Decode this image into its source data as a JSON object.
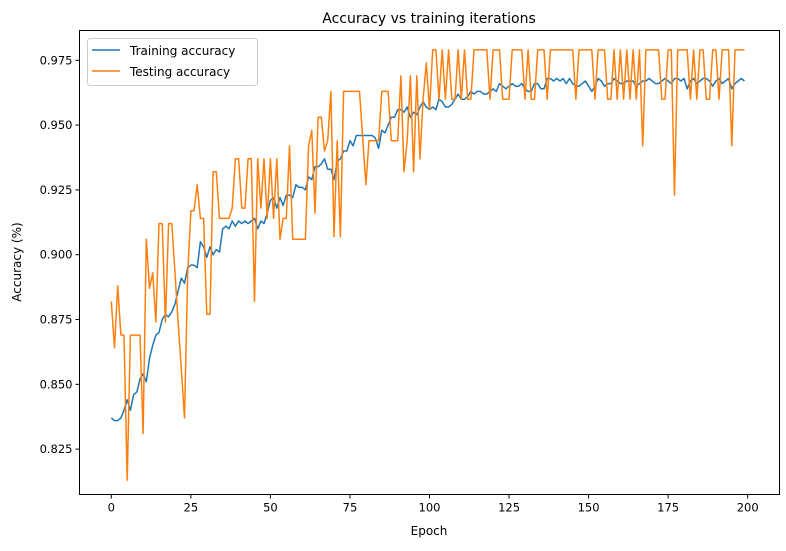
{
  "chart_data": {
    "type": "line",
    "title": "Accuracy vs training iterations",
    "xlabel": "Epoch",
    "ylabel": "Accuracy (%)",
    "xlim": [
      -10,
      210
    ],
    "ylim": [
      0.8075,
      0.9865
    ],
    "xticks": [
      0,
      25,
      50,
      75,
      100,
      125,
      150,
      175,
      200
    ],
    "yticks": [
      0.825,
      0.85,
      0.875,
      0.9,
      0.925,
      0.95,
      0.975
    ],
    "ytick_labels": [
      "0.825",
      "0.850",
      "0.875",
      "0.900",
      "0.925",
      "0.950",
      "0.975"
    ],
    "grid": false,
    "legend_placement": "top-left",
    "series": [
      {
        "name": "Training accuracy",
        "color": "#1f77b4",
        "values": [
          0.837,
          0.836,
          0.836,
          0.837,
          0.84,
          0.844,
          0.84,
          0.846,
          0.847,
          0.852,
          0.854,
          0.851,
          0.86,
          0.865,
          0.869,
          0.87,
          0.875,
          0.877,
          0.876,
          0.878,
          0.881,
          0.886,
          0.891,
          0.889,
          0.895,
          0.896,
          0.896,
          0.895,
          0.905,
          0.903,
          0.899,
          0.903,
          0.9,
          0.902,
          0.901,
          0.91,
          0.911,
          0.91,
          0.913,
          0.911,
          0.913,
          0.912,
          0.913,
          0.912,
          0.913,
          0.914,
          0.91,
          0.913,
          0.912,
          0.916,
          0.921,
          0.922,
          0.918,
          0.922,
          0.919,
          0.923,
          0.923,
          0.922,
          0.927,
          0.926,
          0.926,
          0.925,
          0.93,
          0.929,
          0.934,
          0.934,
          0.935,
          0.937,
          0.933,
          0.933,
          0.929,
          0.936,
          0.937,
          0.94,
          0.94,
          0.944,
          0.942,
          0.946,
          0.946,
          0.946,
          0.946,
          0.946,
          0.946,
          0.945,
          0.941,
          0.948,
          0.947,
          0.95,
          0.953,
          0.953,
          0.956,
          0.956,
          0.955,
          0.957,
          0.953,
          0.955,
          0.954,
          0.957,
          0.959,
          0.957,
          0.956,
          0.957,
          0.956,
          0.96,
          0.959,
          0.957,
          0.957,
          0.958,
          0.96,
          0.962,
          0.96,
          0.96,
          0.961,
          0.963,
          0.962,
          0.963,
          0.963,
          0.962,
          0.962,
          0.963,
          0.964,
          0.963,
          0.966,
          0.965,
          0.964,
          0.965,
          0.966,
          0.965,
          0.965,
          0.966,
          0.964,
          0.963,
          0.963,
          0.966,
          0.966,
          0.964,
          0.964,
          0.968,
          0.968,
          0.967,
          0.968,
          0.967,
          0.968,
          0.966,
          0.968,
          0.966,
          0.965,
          0.965,
          0.966,
          0.967,
          0.965,
          0.963,
          0.965,
          0.968,
          0.967,
          0.965,
          0.966,
          0.966,
          0.968,
          0.967,
          0.966,
          0.966,
          0.967,
          0.967,
          0.967,
          0.965,
          0.966,
          0.967,
          0.967,
          0.968,
          0.967,
          0.966,
          0.966,
          0.967,
          0.968,
          0.967,
          0.966,
          0.968,
          0.968,
          0.967,
          0.968,
          0.964,
          0.967,
          0.968,
          0.966,
          0.967,
          0.968,
          0.968,
          0.967,
          0.965,
          0.967,
          0.968,
          0.966,
          0.967,
          0.968,
          0.964,
          0.966,
          0.967,
          0.968,
          0.967
        ]
      },
      {
        "name": "Testing accuracy",
        "color": "#ff7f0e",
        "values": [
          0.882,
          0.864,
          0.888,
          0.869,
          0.869,
          0.813,
          0.869,
          0.869,
          0.869,
          0.869,
          0.831,
          0.906,
          0.887,
          0.893,
          0.874,
          0.912,
          0.912,
          0.874,
          0.912,
          0.912,
          0.893,
          0.874,
          0.856,
          0.837,
          0.893,
          0.917,
          0.917,
          0.927,
          0.914,
          0.914,
          0.877,
          0.877,
          0.932,
          0.932,
          0.914,
          0.914,
          0.914,
          0.914,
          0.918,
          0.937,
          0.937,
          0.918,
          0.918,
          0.937,
          0.937,
          0.882,
          0.937,
          0.918,
          0.937,
          0.914,
          0.937,
          0.914,
          0.937,
          0.906,
          0.914,
          0.914,
          0.942,
          0.906,
          0.906,
          0.906,
          0.906,
          0.906,
          0.942,
          0.948,
          0.916,
          0.953,
          0.953,
          0.94,
          0.944,
          0.963,
          0.907,
          0.944,
          0.907,
          0.963,
          0.963,
          0.963,
          0.963,
          0.963,
          0.963,
          0.945,
          0.927,
          0.944,
          0.944,
          0.944,
          0.944,
          0.963,
          0.963,
          0.963,
          0.944,
          0.944,
          0.944,
          0.969,
          0.932,
          0.944,
          0.969,
          0.932,
          0.969,
          0.937,
          0.96,
          0.974,
          0.956,
          0.979,
          0.979,
          0.96,
          0.979,
          0.96,
          0.979,
          0.96,
          0.96,
          0.979,
          0.96,
          0.979,
          0.96,
          0.96,
          0.979,
          0.979,
          0.979,
          0.979,
          0.979,
          0.96,
          0.979,
          0.979,
          0.979,
          0.96,
          0.96,
          0.96,
          0.979,
          0.979,
          0.979,
          0.979,
          0.96,
          0.979,
          0.96,
          0.96,
          0.979,
          0.979,
          0.979,
          0.96,
          0.979,
          0.979,
          0.979,
          0.979,
          0.979,
          0.979,
          0.979,
          0.979,
          0.96,
          0.979,
          0.979,
          0.979,
          0.979,
          0.979,
          0.96,
          0.979,
          0.979,
          0.979,
          0.96,
          0.96,
          0.979,
          0.96,
          0.979,
          0.96,
          0.979,
          0.96,
          0.979,
          0.96,
          0.979,
          0.942,
          0.979,
          0.979,
          0.979,
          0.979,
          0.979,
          0.96,
          0.96,
          0.979,
          0.979,
          0.923,
          0.979,
          0.979,
          0.979,
          0.979,
          0.96,
          0.979,
          0.96,
          0.979,
          0.979,
          0.96,
          0.96,
          0.979,
          0.979,
          0.96,
          0.979,
          0.979,
          0.979,
          0.942,
          0.979,
          0.979,
          0.979,
          0.979
        ]
      }
    ]
  }
}
